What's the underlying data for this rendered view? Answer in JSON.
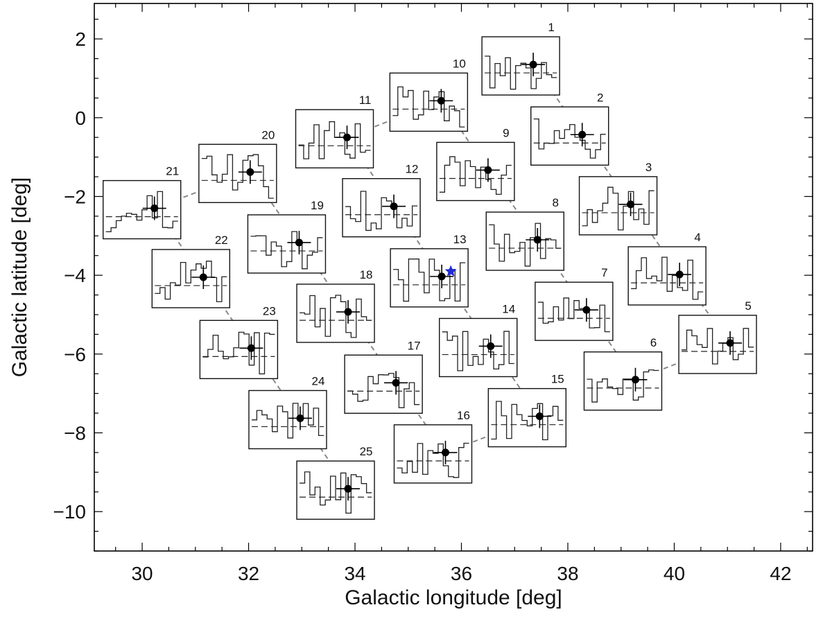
{
  "chart_data": {
    "type": "scatter",
    "title": "",
    "xlabel": "Galactic longitude [deg]",
    "ylabel": "Galactic latitude [deg]",
    "xlim": [
      29.1,
      42.6
    ],
    "ylim": [
      -11,
      2.9
    ],
    "xticks": [
      30,
      32,
      34,
      36,
      38,
      40,
      42
    ],
    "yticks": [
      2,
      0,
      -2,
      -4,
      -6,
      -8,
      -10
    ],
    "grid": false,
    "marker_color": "#000000",
    "special_marker": {
      "symbol": "star",
      "color": "#1f2bd6",
      "x": 35.8,
      "y": -3.9
    },
    "path_color": "#888888",
    "fields": [
      {
        "label": "1",
        "x": 37.35,
        "y": 1.35
      },
      {
        "label": "2",
        "x": 38.27,
        "y": -0.43
      },
      {
        "label": "3",
        "x": 39.18,
        "y": -2.2
      },
      {
        "label": "4",
        "x": 40.1,
        "y": -3.98
      },
      {
        "label": "5",
        "x": 41.05,
        "y": -5.72
      },
      {
        "label": "6",
        "x": 39.27,
        "y": -6.65
      },
      {
        "label": "7",
        "x": 38.35,
        "y": -4.88
      },
      {
        "label": "8",
        "x": 37.43,
        "y": -3.1
      },
      {
        "label": "9",
        "x": 36.5,
        "y": -1.33
      },
      {
        "label": "10",
        "x": 35.62,
        "y": 0.43
      },
      {
        "label": "11",
        "x": 33.85,
        "y": -0.5
      },
      {
        "label": "12",
        "x": 34.73,
        "y": -2.25
      },
      {
        "label": "13",
        "x": 35.63,
        "y": -4.03
      },
      {
        "label": "14",
        "x": 36.55,
        "y": -5.8
      },
      {
        "label": "15",
        "x": 37.47,
        "y": -7.58
      },
      {
        "label": "16",
        "x": 35.7,
        "y": -8.5
      },
      {
        "label": "17",
        "x": 34.77,
        "y": -6.73
      },
      {
        "label": "18",
        "x": 33.87,
        "y": -4.93
      },
      {
        "label": "19",
        "x": 32.95,
        "y": -3.17
      },
      {
        "label": "20",
        "x": 32.03,
        "y": -1.38
      },
      {
        "label": "21",
        "x": 30.23,
        "y": -2.3
      },
      {
        "label": "22",
        "x": 31.15,
        "y": -4.05
      },
      {
        "label": "23",
        "x": 32.05,
        "y": -5.85
      },
      {
        "label": "24",
        "x": 32.97,
        "y": -7.63
      },
      {
        "label": "25",
        "x": 33.87,
        "y": -9.42
      }
    ]
  }
}
